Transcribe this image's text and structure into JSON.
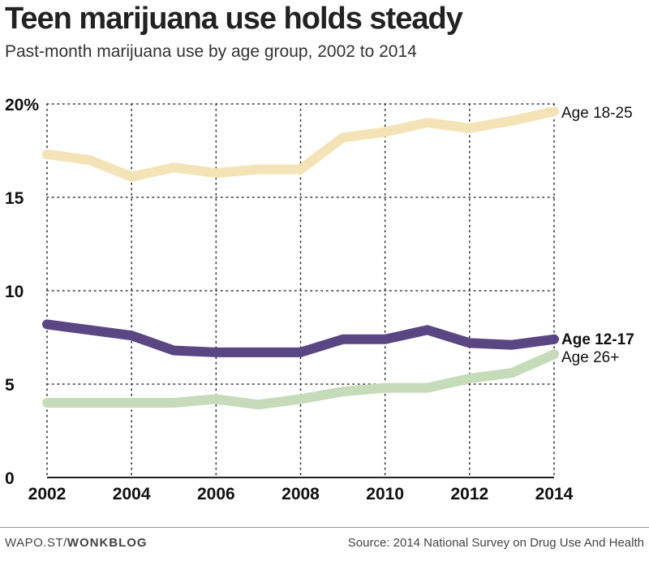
{
  "title": "Teen marijuana use holds steady",
  "subtitle": "Past-month marijuana use by age group, 2002 to 2014",
  "footer": {
    "credit_prefix": "WAPO.ST/",
    "credit_brand": "WONKBLOG",
    "source": "Source: 2014 National Survey on Drug Use And Health"
  },
  "chart_data": {
    "type": "line",
    "x": [
      2002,
      2003,
      2004,
      2005,
      2006,
      2007,
      2008,
      2009,
      2010,
      2011,
      2012,
      2013,
      2014
    ],
    "xticks": [
      2002,
      2004,
      2006,
      2008,
      2010,
      2012,
      2014
    ],
    "xtick_labels": [
      "2002",
      "2004",
      "2006",
      "2008",
      "2010",
      "2012",
      "2014"
    ],
    "yticks": [
      0,
      5,
      10,
      15,
      20
    ],
    "ytick_labels": [
      "0",
      "5",
      "10",
      "15",
      "20%"
    ],
    "xlim": [
      2002,
      2014
    ],
    "ylim": [
      0,
      20
    ],
    "grid": true,
    "series": [
      {
        "name": "Age 18-25",
        "color": "#f3e3b6",
        "label_bold": false,
        "values": [
          17.3,
          17.0,
          16.1,
          16.6,
          16.3,
          16.5,
          16.5,
          18.2,
          18.5,
          19.0,
          18.7,
          19.1,
          19.6
        ]
      },
      {
        "name": "Age 26+",
        "color": "#c5dbb9",
        "label_bold": false,
        "values": [
          4.0,
          4.0,
          4.0,
          4.0,
          4.2,
          3.9,
          4.2,
          4.6,
          4.8,
          4.8,
          5.3,
          5.6,
          6.6
        ]
      },
      {
        "name": "Age 12-17",
        "color": "#5a4683",
        "label_bold": true,
        "values": [
          8.2,
          7.9,
          7.6,
          6.8,
          6.7,
          6.7,
          6.7,
          7.4,
          7.4,
          7.9,
          7.2,
          7.1,
          7.4
        ]
      }
    ]
  }
}
